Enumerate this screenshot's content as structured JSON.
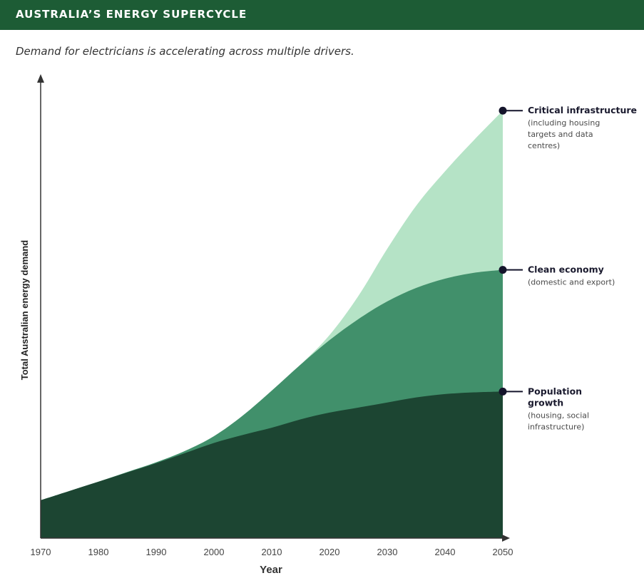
{
  "header": {
    "title": "AUSTRALIA’S ENERGY SUPERCYCLE"
  },
  "subtitle": "Demand for electricians is accelerating across multiple drivers.",
  "chart_data": {
    "type": "area",
    "stacked": true,
    "xlabel": "Year",
    "ylabel": "Total Australian energy demand",
    "x": [
      1970,
      1975,
      1980,
      1985,
      1990,
      1995,
      2000,
      2005,
      2010,
      2015,
      2020,
      2025,
      2030,
      2035,
      2040,
      2045,
      2050
    ],
    "xticks": [
      "1970",
      "1980",
      "1990",
      "2000",
      "2010",
      "2020",
      "2030",
      "2040",
      "2050"
    ],
    "series": [
      {
        "name": "Population growth",
        "sublabel": "(housing, social infrastructure)",
        "values": [
          9,
          11.2,
          13.4,
          15.6,
          17.8,
          20.2,
          22.6,
          24.5,
          26.2,
          28.2,
          29.8,
          31,
          32.2,
          33.4,
          34.2,
          34.6,
          34.8
        ],
        "color": "#1c4532"
      },
      {
        "name": "Clean economy",
        "sublabel": "(domestic and export)",
        "values": [
          0,
          0,
          0,
          0.1,
          0.2,
          0.5,
          1.6,
          4.6,
          8.8,
          13,
          17.2,
          21,
          24,
          26,
          27.4,
          28.4,
          28.9
        ],
        "color": "#41906b"
      },
      {
        "name": "Critical infrastructure",
        "sublabel": "(including housing targets and data centres)",
        "values": [
          0,
          0,
          0,
          0,
          0,
          0,
          0,
          0,
          0,
          0,
          1.2,
          5.5,
          12.5,
          19.5,
          25.5,
          31.5,
          37.8
        ],
        "color": "#b5e3c6"
      }
    ],
    "xlim": [
      1970,
      2050
    ],
    "ylim": [
      0,
      110
    ],
    "grid": false,
    "legend": "right-side labels",
    "marker_color": "#14142b"
  }
}
